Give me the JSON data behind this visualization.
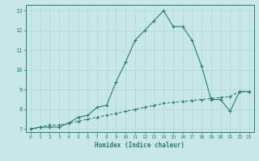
{
  "xlabel": "Humidex (Indice chaleur)",
  "ylabel": "",
  "background_color": "#c8e8e8",
  "grid_color": "#b0d4d4",
  "line_color": "#2a7a6a",
  "xlim": [
    -0.5,
    23.5
  ],
  "ylim": [
    6.85,
    13.3
  ],
  "yticks": [
    7,
    8,
    9,
    10,
    11,
    12,
    13
  ],
  "xticks": [
    0,
    1,
    2,
    3,
    4,
    5,
    6,
    7,
    8,
    9,
    10,
    11,
    12,
    13,
    14,
    15,
    16,
    17,
    18,
    19,
    20,
    21,
    22,
    23
  ],
  "line1_x": [
    0,
    1,
    2,
    3,
    4,
    5,
    6,
    7,
    8,
    9,
    10,
    11,
    12,
    13,
    14,
    15,
    16,
    17,
    18,
    19,
    20,
    21,
    22,
    23
  ],
  "line1_y": [
    7.0,
    7.1,
    7.1,
    7.1,
    7.3,
    7.6,
    7.7,
    8.1,
    8.2,
    9.4,
    10.4,
    11.5,
    12.0,
    12.5,
    13.0,
    12.2,
    12.2,
    11.5,
    10.2,
    8.5,
    8.5,
    7.9,
    8.9,
    8.9
  ],
  "line2_x": [
    0,
    1,
    2,
    3,
    4,
    5,
    6,
    7,
    8,
    9,
    10,
    11,
    12,
    13,
    14,
    15,
    16,
    17,
    18,
    19,
    20,
    21,
    22,
    23
  ],
  "line2_y": [
    7.0,
    7.1,
    7.2,
    7.2,
    7.3,
    7.4,
    7.5,
    7.6,
    7.7,
    7.8,
    7.9,
    8.0,
    8.1,
    8.2,
    8.3,
    8.35,
    8.4,
    8.45,
    8.5,
    8.55,
    8.6,
    8.65,
    8.9,
    8.9
  ],
  "xlabel_fontsize": 5.5,
  "tick_fontsize": 4.5,
  "linewidth": 0.8,
  "marker_size": 3.0
}
